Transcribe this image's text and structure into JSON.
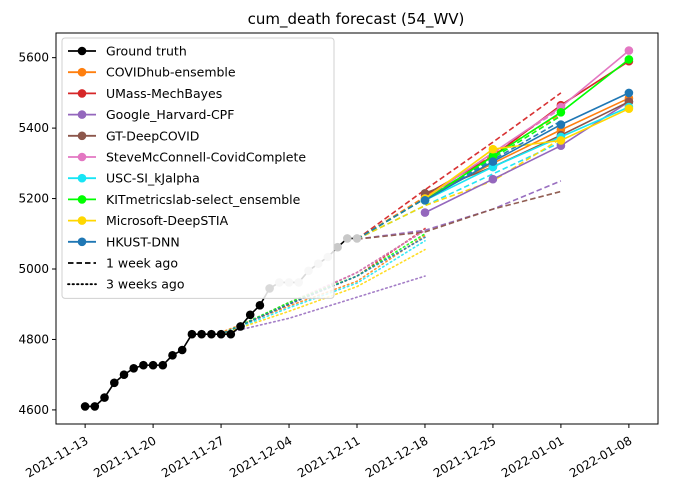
{
  "chart_data": {
    "type": "line",
    "title": "cum_death forecast (54_WV)",
    "xlabel": "",
    "ylabel": "",
    "x_ticks": [
      "2021-11-13",
      "2021-11-20",
      "2021-11-27",
      "2021-12-04",
      "2021-12-11",
      "2021-12-18",
      "2021-12-25",
      "2022-01-01",
      "2022-01-08"
    ],
    "y_ticks": [
      4600,
      4800,
      5000,
      5200,
      5400,
      5600
    ],
    "xlim": [
      "2021-11-10",
      "2022-01-11"
    ],
    "ylim": [
      4560,
      5670
    ],
    "grid": false,
    "legend_position": "top-left",
    "ground_truth": {
      "name": "Ground truth",
      "color": "#000000",
      "x": [
        "2021-11-13",
        "2021-11-14",
        "2021-11-15",
        "2021-11-16",
        "2021-11-17",
        "2021-11-18",
        "2021-11-19",
        "2021-11-20",
        "2021-11-21",
        "2021-11-22",
        "2021-11-23",
        "2021-11-24",
        "2021-11-25",
        "2021-11-26",
        "2021-11-27",
        "2021-11-28",
        "2021-11-29",
        "2021-11-30",
        "2021-12-01",
        "2021-12-02",
        "2021-12-03",
        "2021-12-04",
        "2021-12-05",
        "2021-12-06",
        "2021-12-07",
        "2021-12-08",
        "2021-12-09",
        "2021-12-10",
        "2021-12-11"
      ],
      "y": [
        4610,
        4610,
        4635,
        4677,
        4700,
        4718,
        4727,
        4727,
        4727,
        4755,
        4770,
        4815,
        4815,
        4815,
        4815,
        4815,
        4837,
        4870,
        4897,
        4945,
        4962,
        4962,
        4962,
        4995,
        5015,
        5034,
        5062,
        5087,
        5087
      ],
      "faded_from": "2021-12-03"
    },
    "series": [
      {
        "name": "COVIDhub-ensemble",
        "color": "#ff7f0e",
        "x": [
          "2021-12-18",
          "2021-12-25",
          "2022-01-01",
          "2022-01-08"
        ],
        "y": [
          5200,
          5300,
          5395,
          5485
        ],
        "week1": {
          "x": [
            "2021-12-11",
            "2021-12-18",
            "2021-12-25",
            "2022-01-01"
          ],
          "y": [
            5085,
            5205,
            5325,
            5440
          ]
        },
        "week3": {
          "x": [
            "2021-11-27",
            "2021-12-04",
            "2021-12-11",
            "2021-12-18"
          ],
          "y": [
            4820,
            4895,
            4965,
            5095
          ]
        }
      },
      {
        "name": "UMass-MechBayes",
        "color": "#d62728",
        "x": [
          "2021-12-18",
          "2021-12-25",
          "2022-01-01",
          "2022-01-08"
        ],
        "y": [
          5210,
          5320,
          5465,
          5590
        ],
        "week1": {
          "x": [
            "2021-12-11",
            "2021-12-18",
            "2021-12-25",
            "2022-01-01"
          ],
          "y": [
            5085,
            5225,
            5360,
            5500
          ]
        },
        "week3": {
          "x": [
            "2021-11-27",
            "2021-12-04",
            "2021-12-11",
            "2021-12-18"
          ],
          "y": [
            4815,
            4900,
            4980,
            5115
          ]
        }
      },
      {
        "name": "Google_Harvard-CPF",
        "color": "#9467bd",
        "x": [
          "2021-12-18",
          "2021-12-25",
          "2022-01-01",
          "2022-01-08"
        ],
        "y": [
          5160,
          5255,
          5350,
          5475
        ],
        "week1": {
          "x": [
            "2021-12-11",
            "2021-12-18",
            "2021-12-25",
            "2022-01-01"
          ],
          "y": [
            5085,
            5110,
            5170,
            5250
          ]
        },
        "week3": {
          "x": [
            "2021-11-27",
            "2021-12-04",
            "2021-12-11",
            "2021-12-18"
          ],
          "y": [
            4815,
            4860,
            4920,
            4980
          ]
        }
      },
      {
        "name": "GT-DeepCOVID",
        "color": "#8c564b",
        "x": [
          "2021-12-18",
          "2021-12-25",
          "2022-01-01",
          "2022-01-08"
        ],
        "y": [
          5215,
          5290,
          5380,
          5475
        ],
        "week1": {
          "x": [
            "2021-12-11",
            "2021-12-18",
            "2021-12-25",
            "2022-01-01"
          ],
          "y": [
            5085,
            5105,
            5170,
            5220
          ]
        },
        "week3": {
          "x": [
            "2021-11-27",
            "2021-12-04",
            "2021-12-11",
            "2021-12-18"
          ],
          "y": [
            4815,
            4900,
            4990,
            5110
          ]
        }
      },
      {
        "name": "SteveMcConnell-CovidComplete",
        "color": "#e377c2",
        "x": [
          "2021-12-18",
          "2021-12-25",
          "2022-01-01",
          "2022-01-08"
        ],
        "y": [
          5200,
          5330,
          5460,
          5620
        ],
        "week1": {
          "x": [
            "2021-12-11",
            "2021-12-18",
            "2021-12-25",
            "2022-01-01"
          ],
          "y": [
            5085,
            5200,
            5330,
            5455
          ]
        },
        "week3": {
          "x": [
            "2021-11-27",
            "2021-12-04",
            "2021-12-11",
            "2021-12-18"
          ],
          "y": [
            4815,
            4905,
            4990,
            5110
          ]
        }
      },
      {
        "name": "USC-SI_kJalpha",
        "color": "#17e5f5",
        "x": [
          "2021-12-18",
          "2021-12-25",
          "2022-01-01",
          "2022-01-08"
        ],
        "y": [
          5195,
          5290,
          5375,
          5460
        ],
        "week1": {
          "x": [
            "2021-12-11",
            "2021-12-18",
            "2021-12-25",
            "2022-01-01"
          ],
          "y": [
            5085,
            5180,
            5270,
            5360
          ]
        },
        "week3": {
          "x": [
            "2021-11-27",
            "2021-12-04",
            "2021-12-11",
            "2021-12-18"
          ],
          "y": [
            4815,
            4890,
            4960,
            5080
          ]
        }
      },
      {
        "name": "KITmetricslab-select_ensemble",
        "color": "#00ff00",
        "x": [
          "2021-12-18",
          "2021-12-25",
          "2022-01-01",
          "2022-01-08"
        ],
        "y": [
          5195,
          5320,
          5445,
          5595
        ],
        "week1": {
          "x": [
            "2021-12-11",
            "2021-12-18",
            "2021-12-25",
            "2022-01-01"
          ],
          "y": [
            5085,
            5200,
            5315,
            5435
          ]
        },
        "week3": {
          "x": [
            "2021-11-27",
            "2021-12-04",
            "2021-12-11",
            "2021-12-18"
          ],
          "y": [
            4815,
            4905,
            4980,
            5100
          ]
        }
      },
      {
        "name": "Microsoft-DeepSTIA",
        "color": "#ffd700",
        "x": [
          "2021-12-18",
          "2021-12-25",
          "2022-01-01",
          "2022-01-08"
        ],
        "y": [
          5200,
          5340,
          5365,
          5455
        ],
        "week1": {
          "x": [
            "2021-12-11",
            "2021-12-18",
            "2021-12-25",
            "2022-01-01"
          ],
          "y": [
            5085,
            5180,
            5250,
            5370
          ]
        },
        "week3": {
          "x": [
            "2021-11-27",
            "2021-12-04",
            "2021-12-11",
            "2021-12-18"
          ],
          "y": [
            4815,
            4880,
            4950,
            5055
          ]
        }
      },
      {
        "name": "HKUST-DNN",
        "color": "#1f77b4",
        "x": [
          "2021-12-18",
          "2021-12-25",
          "2022-01-01",
          "2022-01-08"
        ],
        "y": [
          5195,
          5305,
          5410,
          5500
        ],
        "week1": {
          "x": [
            "2021-12-11",
            "2021-12-18",
            "2021-12-25",
            "2022-01-01"
          ],
          "y": [
            5085,
            5200,
            5310,
            5420
          ]
        },
        "week3": {
          "x": [
            "2021-11-27",
            "2021-12-04",
            "2021-12-11",
            "2021-12-18"
          ],
          "y": [
            4815,
            4900,
            4980,
            5090
          ]
        }
      }
    ],
    "legend": [
      {
        "label": "Ground truth",
        "style": "solid-marker",
        "color": "#000000"
      },
      {
        "label": "COVIDhub-ensemble",
        "style": "solid-marker",
        "color": "#ff7f0e"
      },
      {
        "label": "UMass-MechBayes",
        "style": "solid-marker",
        "color": "#d62728"
      },
      {
        "label": "Google_Harvard-CPF",
        "style": "solid-marker",
        "color": "#9467bd"
      },
      {
        "label": "GT-DeepCOVID",
        "style": "solid-marker",
        "color": "#8c564b"
      },
      {
        "label": "SteveMcConnell-CovidComplete",
        "style": "solid-marker",
        "color": "#e377c2"
      },
      {
        "label": "USC-SI_kJalpha",
        "style": "solid-marker",
        "color": "#17e5f5"
      },
      {
        "label": "KITmetricslab-select_ensemble",
        "style": "solid-marker",
        "color": "#00ff00"
      },
      {
        "label": "Microsoft-DeepSTIA",
        "style": "solid-marker",
        "color": "#ffd700"
      },
      {
        "label": "HKUST-DNN",
        "style": "solid-marker",
        "color": "#1f77b4"
      },
      {
        "label": "1 week ago",
        "style": "dashed",
        "color": "#000000"
      },
      {
        "label": "3 weeks ago",
        "style": "dotted",
        "color": "#000000"
      }
    ]
  }
}
